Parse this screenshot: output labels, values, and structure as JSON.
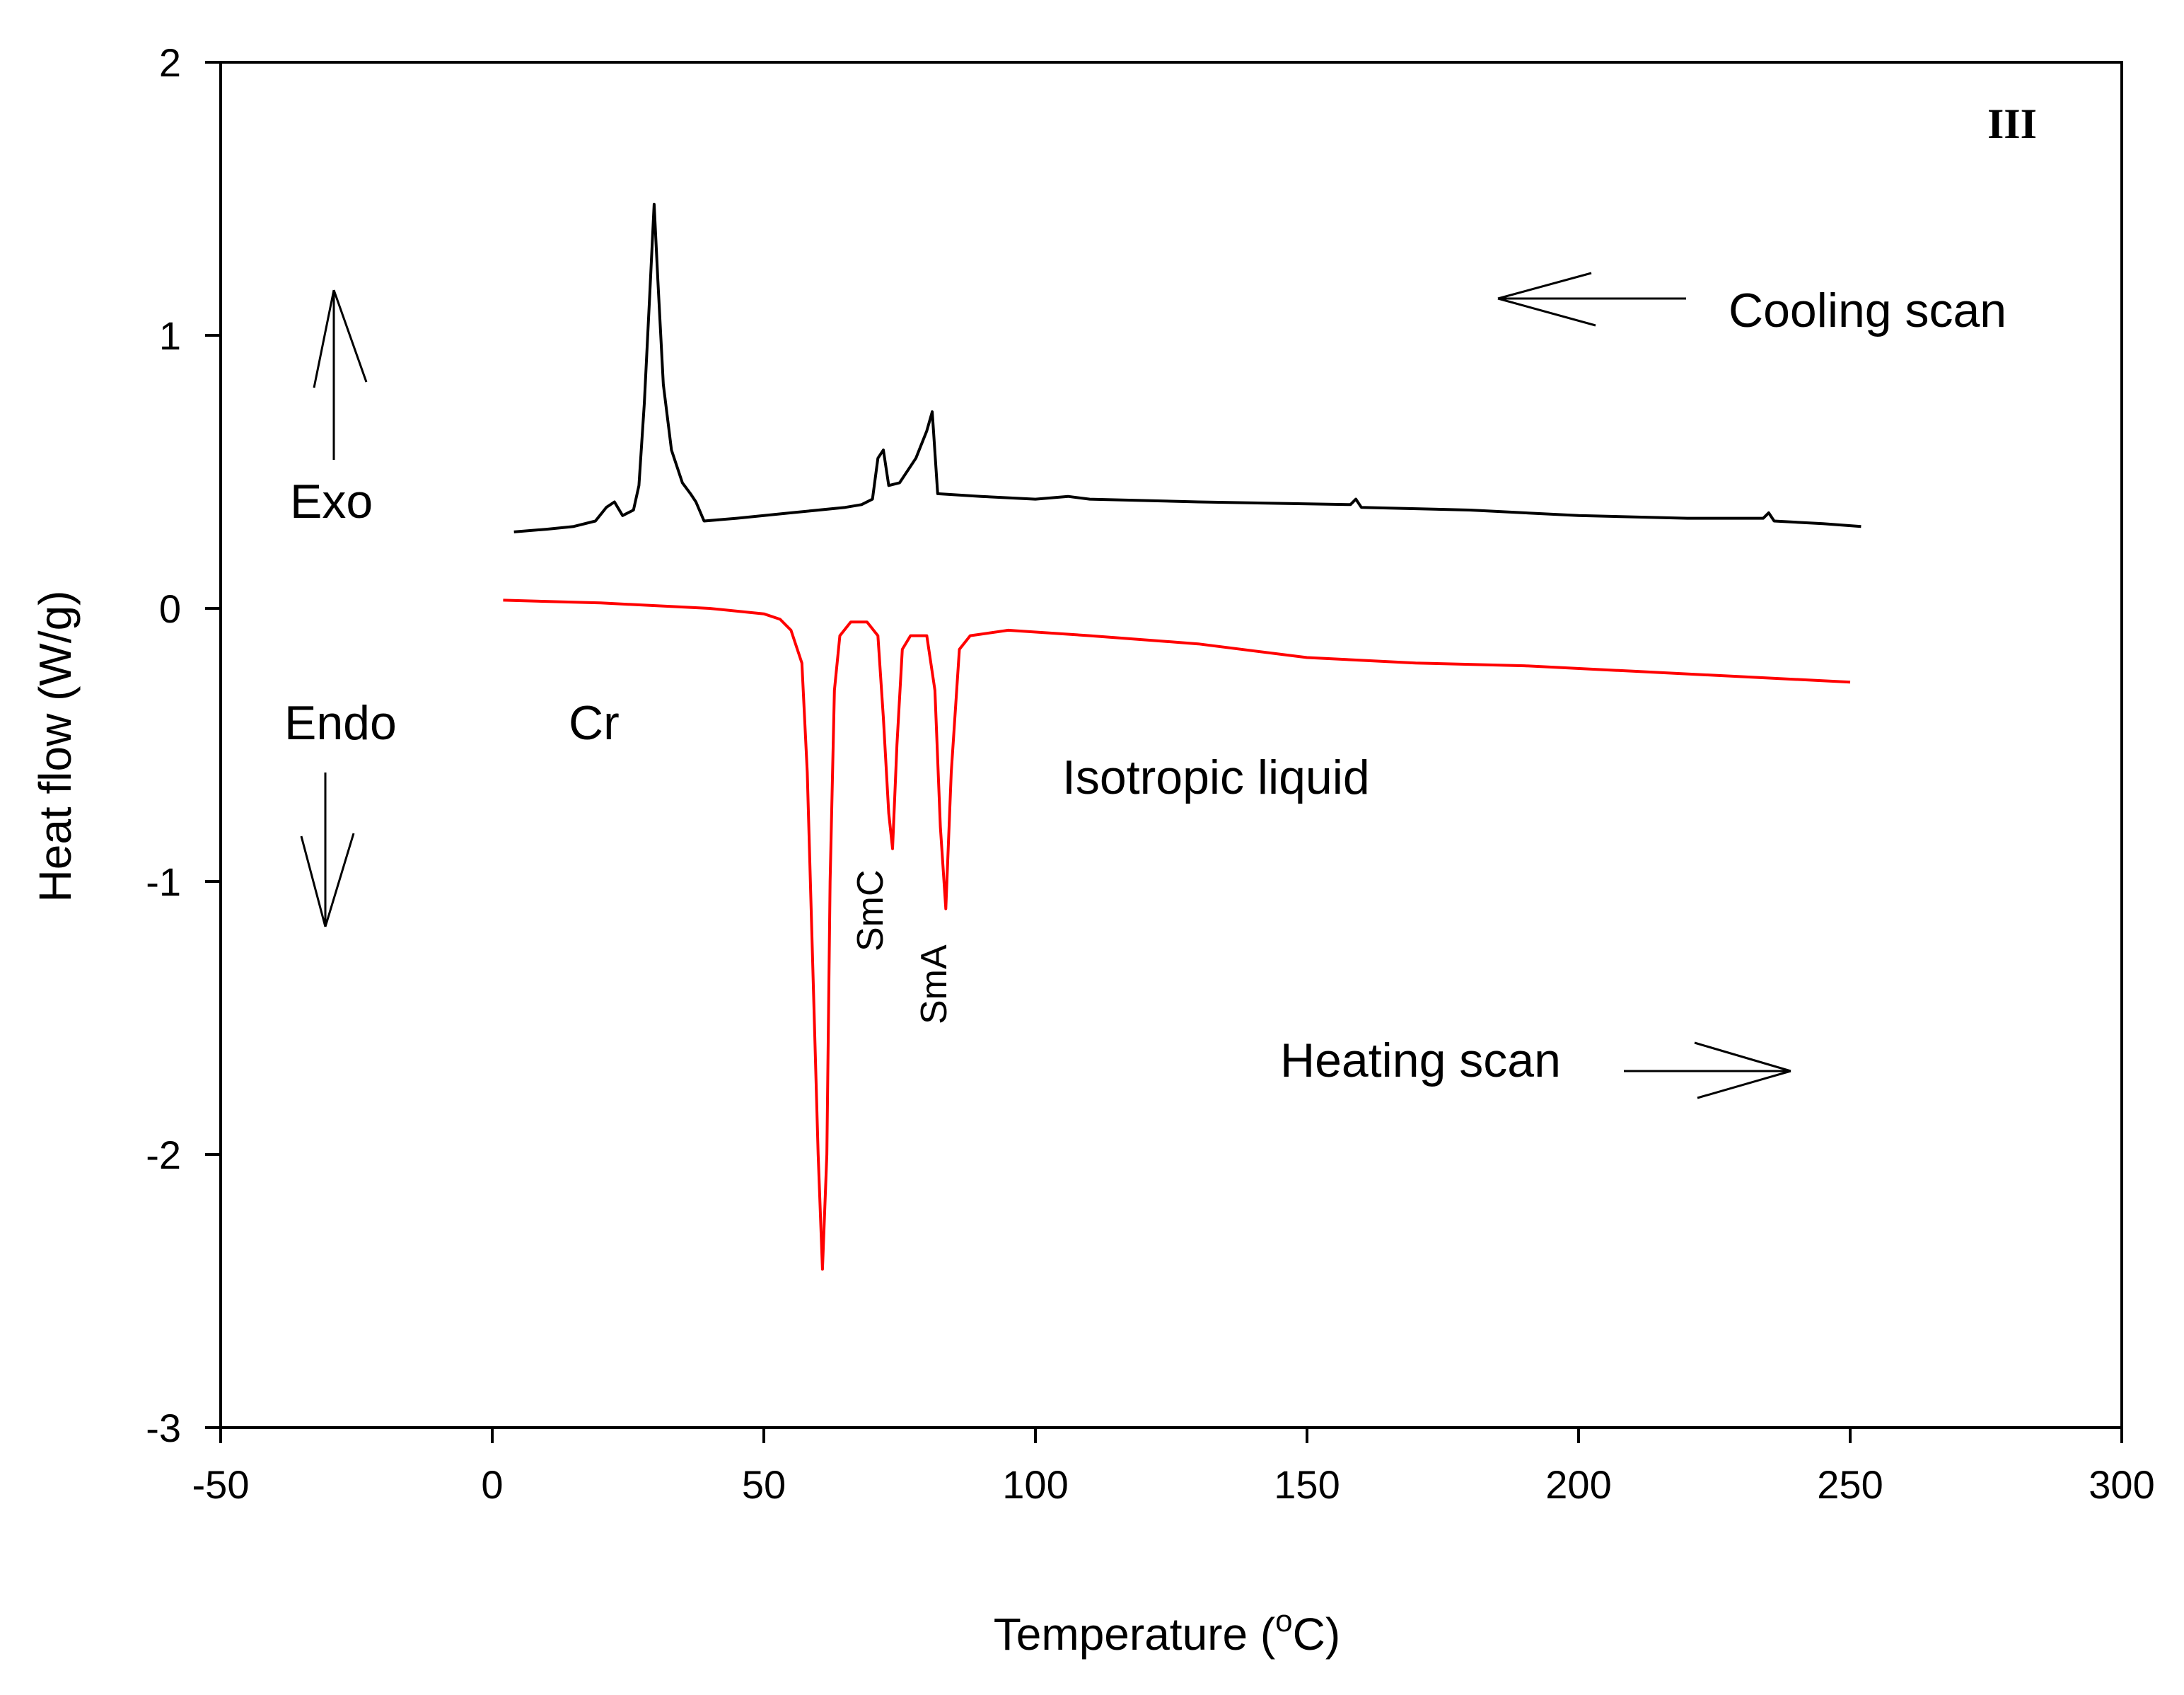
{
  "chart_data": {
    "type": "line",
    "title": "",
    "panel_label": "III",
    "xlabel": "Temperature (",
    "xlabel_unit_sup": "o",
    "xlabel_unit_tail": "C)",
    "ylabel": "Heat flow (W/g)",
    "xlim": [
      -50,
      300
    ],
    "ylim": [
      -3,
      2
    ],
    "xticks": [
      -50,
      0,
      50,
      100,
      150,
      200,
      250,
      300
    ],
    "yticks": [
      -3,
      -2,
      -1,
      0,
      1,
      2
    ],
    "xtick_labels": [
      "-50",
      "0",
      "50",
      "100",
      "150",
      "200",
      "250",
      "300"
    ],
    "ytick_labels": [
      "-3",
      "-2",
      "-1",
      "0",
      "1",
      "2"
    ],
    "grid": false,
    "series": [
      {
        "name": "Cooling scan",
        "color": "#000000",
        "points": [
          [
            4,
            0.28
          ],
          [
            10,
            0.29
          ],
          [
            15,
            0.3
          ],
          [
            19,
            0.32
          ],
          [
            21,
            0.37
          ],
          [
            22.5,
            0.39
          ],
          [
            24,
            0.34
          ],
          [
            26,
            0.36
          ],
          [
            27,
            0.45
          ],
          [
            28,
            0.75
          ],
          [
            29,
            1.15
          ],
          [
            29.8,
            1.48
          ],
          [
            30.5,
            1.2
          ],
          [
            31.5,
            0.82
          ],
          [
            33,
            0.58
          ],
          [
            35,
            0.46
          ],
          [
            36.5,
            0.42
          ],
          [
            37.5,
            0.39
          ],
          [
            39,
            0.32
          ],
          [
            45,
            0.33
          ],
          [
            55,
            0.35
          ],
          [
            65,
            0.37
          ],
          [
            68,
            0.38
          ],
          [
            70,
            0.4
          ],
          [
            71,
            0.55
          ],
          [
            72,
            0.58
          ],
          [
            73,
            0.45
          ],
          [
            75,
            0.46
          ],
          [
            78,
            0.55
          ],
          [
            80,
            0.65
          ],
          [
            81,
            0.72
          ],
          [
            82,
            0.42
          ],
          [
            90,
            0.41
          ],
          [
            100,
            0.4
          ],
          [
            106,
            0.41
          ],
          [
            110,
            0.4
          ],
          [
            130,
            0.39
          ],
          [
            158,
            0.38
          ],
          [
            159,
            0.4
          ],
          [
            160,
            0.37
          ],
          [
            180,
            0.36
          ],
          [
            200,
            0.34
          ],
          [
            220,
            0.33
          ],
          [
            234,
            0.33
          ],
          [
            235,
            0.35
          ],
          [
            236,
            0.32
          ],
          [
            245,
            0.31
          ],
          [
            252,
            0.3
          ]
        ]
      },
      {
        "name": "Heating scan",
        "color": "#ff0000",
        "points": [
          [
            2,
            0.03
          ],
          [
            20,
            0.02
          ],
          [
            40,
            0.0
          ],
          [
            50,
            -0.02
          ],
          [
            53,
            -0.04
          ],
          [
            55,
            -0.08
          ],
          [
            57,
            -0.2
          ],
          [
            58,
            -0.6
          ],
          [
            59,
            -1.3
          ],
          [
            60,
            -2.0
          ],
          [
            60.8,
            -2.42
          ],
          [
            61.6,
            -2.0
          ],
          [
            62.2,
            -1.0
          ],
          [
            63,
            -0.3
          ],
          [
            64,
            -0.1
          ],
          [
            66,
            -0.05
          ],
          [
            69,
            -0.05
          ],
          [
            71,
            -0.1
          ],
          [
            72,
            -0.4
          ],
          [
            73,
            -0.75
          ],
          [
            73.7,
            -0.88
          ],
          [
            74.5,
            -0.5
          ],
          [
            75.5,
            -0.15
          ],
          [
            77,
            -0.1
          ],
          [
            80,
            -0.1
          ],
          [
            81.5,
            -0.3
          ],
          [
            82.5,
            -0.8
          ],
          [
            83.5,
            -1.1
          ],
          [
            84.5,
            -0.6
          ],
          [
            86,
            -0.15
          ],
          [
            88,
            -0.1
          ],
          [
            95,
            -0.08
          ],
          [
            110,
            -0.1
          ],
          [
            130,
            -0.13
          ],
          [
            150,
            -0.18
          ],
          [
            170,
            -0.2
          ],
          [
            190,
            -0.21
          ],
          [
            210,
            -0.23
          ],
          [
            230,
            -0.25
          ],
          [
            250,
            -0.27
          ]
        ]
      }
    ],
    "annotations": {
      "exo": "Exo",
      "endo": "Endo",
      "cr": "Cr",
      "isotropic": "Isotropic liquid",
      "smc": "SmC",
      "sma": "SmA",
      "cooling": "Cooling scan",
      "heating": "Heating scan"
    }
  }
}
